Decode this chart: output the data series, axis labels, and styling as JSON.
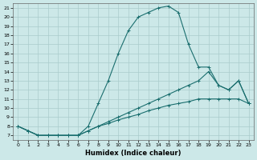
{
  "xlabel": "Humidex (Indice chaleur)",
  "ylabel": "",
  "background_color": "#cce8e8",
  "grid_color": "#aacccc",
  "line_color": "#1a6e6e",
  "xlim": [
    -0.5,
    23.5
  ],
  "ylim": [
    6.5,
    21.5
  ],
  "xticks": [
    0,
    1,
    2,
    3,
    4,
    5,
    6,
    7,
    8,
    9,
    10,
    11,
    12,
    13,
    14,
    15,
    16,
    17,
    18,
    19,
    20,
    21,
    22,
    23
  ],
  "yticks": [
    7,
    8,
    9,
    10,
    11,
    12,
    13,
    14,
    15,
    16,
    17,
    18,
    19,
    20,
    21
  ],
  "line1_x": [
    0,
    1,
    2,
    3,
    4,
    5,
    6,
    7,
    8,
    9,
    10,
    11,
    12,
    13,
    14,
    15,
    16,
    17,
    18,
    19,
    20,
    21,
    22,
    23
  ],
  "line1_y": [
    8,
    7.5,
    7,
    7,
    7,
    7,
    7,
    7.5,
    8,
    8.3,
    8.7,
    9,
    9.3,
    9.7,
    10,
    10.3,
    10.5,
    10.7,
    11,
    11,
    11,
    11,
    11,
    10.5
  ],
  "line2_x": [
    0,
    1,
    2,
    3,
    4,
    5,
    6,
    7,
    8,
    9,
    10,
    11,
    12,
    13,
    14,
    15,
    16,
    17,
    18,
    19,
    20,
    21,
    22,
    23
  ],
  "line2_y": [
    8,
    7.5,
    7,
    7,
    7,
    7,
    7,
    8,
    10.5,
    13,
    16,
    18.5,
    20,
    20.5,
    21,
    21.2,
    20.5,
    17,
    14.5,
    14.5,
    12.5,
    12,
    13,
    10.5
  ],
  "line3_x": [
    0,
    1,
    2,
    3,
    4,
    5,
    6,
    7,
    8,
    9,
    10,
    11,
    12,
    13,
    14,
    15,
    16,
    17,
    18,
    19,
    20,
    21,
    22,
    23
  ],
  "line3_y": [
    8,
    7.5,
    7,
    7,
    7,
    7,
    7,
    7.5,
    8,
    8.5,
    9,
    9.5,
    10,
    10.5,
    11,
    11.5,
    12,
    12.5,
    13,
    14,
    12.5,
    12,
    13,
    10.5
  ]
}
